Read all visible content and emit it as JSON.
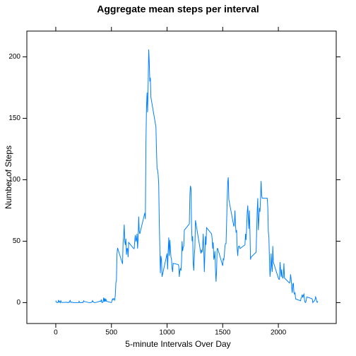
{
  "chart_data": {
    "type": "line",
    "title": "Aggregate mean steps per interval",
    "x_label": "5-minute Intervals Over Day",
    "y_label": "Number of Steps",
    "x": [
      0,
      5,
      10,
      15,
      20,
      25,
      30,
      35,
      40,
      45,
      50,
      55,
      100,
      105,
      110,
      115,
      120,
      125,
      130,
      135,
      140,
      145,
      150,
      155,
      200,
      205,
      210,
      215,
      220,
      225,
      230,
      235,
      240,
      245,
      250,
      255,
      300,
      305,
      310,
      315,
      320,
      325,
      330,
      335,
      340,
      345,
      350,
      355,
      400,
      405,
      410,
      415,
      420,
      425,
      430,
      435,
      440,
      445,
      450,
      455,
      500,
      505,
      510,
      515,
      520,
      525,
      530,
      535,
      540,
      545,
      550,
      555,
      600,
      605,
      610,
      615,
      620,
      625,
      630,
      635,
      640,
      645,
      650,
      655,
      700,
      705,
      710,
      715,
      720,
      725,
      730,
      735,
      740,
      745,
      750,
      755,
      800,
      805,
      810,
      815,
      820,
      825,
      830,
      835,
      840,
      845,
      850,
      855,
      900,
      905,
      910,
      915,
      920,
      925,
      930,
      935,
      940,
      945,
      950,
      955,
      1000,
      1005,
      1010,
      1015,
      1020,
      1025,
      1030,
      1035,
      1040,
      1045,
      1050,
      1055,
      1100,
      1105,
      1110,
      1115,
      1120,
      1125,
      1130,
      1135,
      1140,
      1145,
      1150,
      1155,
      1200,
      1205,
      1210,
      1215,
      1220,
      1225,
      1230,
      1235,
      1240,
      1245,
      1250,
      1255,
      1300,
      1305,
      1310,
      1315,
      1320,
      1325,
      1330,
      1335,
      1340,
      1345,
      1350,
      1355,
      1400,
      1405,
      1410,
      1415,
      1420,
      1425,
      1430,
      1435,
      1440,
      1445,
      1450,
      1455,
      1500,
      1505,
      1510,
      1515,
      1520,
      1525,
      1530,
      1535,
      1540,
      1545,
      1550,
      1555,
      1600,
      1605,
      1610,
      1615,
      1620,
      1625,
      1630,
      1635,
      1640,
      1645,
      1650,
      1655,
      1700,
      1705,
      1710,
      1715,
      1720,
      1725,
      1730,
      1735,
      1740,
      1745,
      1750,
      1755,
      1800,
      1805,
      1810,
      1815,
      1820,
      1825,
      1830,
      1835,
      1840,
      1845,
      1850,
      1855,
      1900,
      1905,
      1910,
      1915,
      1920,
      1925,
      1930,
      1935,
      1940,
      1945,
      1950,
      1955,
      2000,
      2005,
      2010,
      2015,
      2020,
      2025,
      2030,
      2035,
      2040,
      2045,
      2050,
      2055,
      2100,
      2105,
      2110,
      2115,
      2120,
      2125,
      2130,
      2135,
      2140,
      2145,
      2150,
      2155,
      2200,
      2205,
      2210,
      2215,
      2220,
      2225,
      2230,
      2235,
      2240,
      2245,
      2250,
      2255,
      2300,
      2305,
      2310,
      2315,
      2320,
      2325,
      2330,
      2335,
      2340,
      2345,
      2350,
      2355
    ],
    "series": [
      {
        "color": "#0080ff",
        "values": [
          1.7,
          0.3,
          0.1,
          0.2,
          0.1,
          2.1,
          0.5,
          0.9,
          0,
          1.5,
          0.3,
          0.1,
          0.3,
          0,
          0.2,
          0.3,
          0,
          1.1,
          1.8,
          0.2,
          0.2,
          0.4,
          0.3,
          0,
          0,
          0,
          1.1,
          0,
          0,
          0.1,
          0,
          0.2,
          0,
          0,
          1.5,
          0.9,
          0,
          0,
          0,
          0,
          0.2,
          0.6,
          1.6,
          0.6,
          0.5,
          0.1,
          0,
          0,
          1.2,
          0.9,
          2.6,
          0,
          0.3,
          0.4,
          4.1,
          0.7,
          3.5,
          0.8,
          3.1,
          1.1,
          0,
          1.6,
          3,
          2.2,
          3.3,
          3,
          2.1,
          6,
          16,
          18.3,
          39.5,
          44.5,
          31.5,
          49.3,
          53.8,
          63.5,
          50,
          47,
          52,
          39,
          44,
          44,
          37,
          49,
          44,
          44,
          51,
          55,
          50,
          51,
          56,
          44,
          52,
          70,
          58,
          56,
          73,
          68,
          129,
          158,
          171,
          155,
          177,
          206,
          196,
          180,
          183,
          167,
          143,
          124,
          109,
          108,
          104,
          96,
          66,
          45,
          24,
          38,
          35,
          21,
          40,
          27,
          42,
          53,
          38,
          51,
          44,
          37,
          35,
          28,
          25,
          32,
          31,
          30,
          21,
          26,
          28,
          26,
          33,
          50,
          42,
          45,
          46,
          59,
          64,
          88,
          95,
          93,
          63,
          50,
          54,
          32,
          26,
          38,
          45,
          67,
          42,
          40,
          43,
          41,
          46,
          56,
          43,
          25,
          40,
          54,
          47,
          61,
          56,
          52,
          44,
          49,
          35,
          37,
          42,
          27,
          17,
          26,
          44,
          44,
          30,
          36,
          35,
          39,
          46,
          48,
          48,
          65,
          82,
          98,
          102,
          84,
          62,
          64,
          75,
          63,
          57,
          59,
          44,
          38,
          45,
          46,
          46,
          44,
          47,
          56,
          51,
          61,
          73,
          79,
          69,
          60,
          75,
          57,
          35,
          37,
          41,
          58,
          75,
          85,
          59,
          68,
          77,
          74,
          85,
          99,
          87,
          85,
          85,
          78,
          58,
          53,
          36,
          21,
          27,
          40,
          30,
          25,
          46,
          33,
          20,
          19,
          19,
          33,
          27,
          21,
          27,
          21,
          20,
          21,
          32,
          20,
          16,
          17,
          23,
          19,
          12,
          8,
          15,
          16,
          8,
          7,
          8,
          3,
          1.5,
          4,
          4.6,
          6.6,
          4,
          6,
          6.9,
          2.2,
          0.3,
          0.1,
          1.6,
          4.6,
          3.3,
          2.8,
          0,
          0.8,
          1,
          1.6,
          2.6,
          4.7,
          3.3,
          0.6,
          0.2,
          1.1
        ]
      }
    ],
    "xlim": [
      -260,
      2520
    ],
    "ylim": [
      -17,
      221
    ],
    "xticks": [
      0,
      500,
      1000,
      1500,
      2000
    ],
    "yticks": [
      0,
      50,
      100,
      150,
      200
    ]
  }
}
